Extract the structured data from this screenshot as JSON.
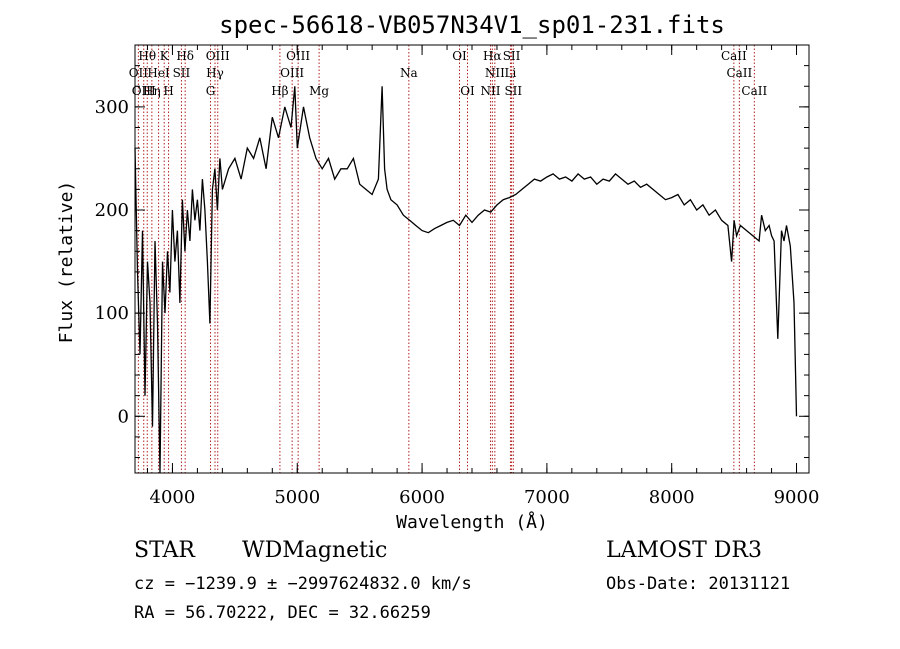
{
  "chart_data": {
    "type": "line",
    "title": "spec-56618-VB057N34V1_sp01-231.fits",
    "xlabel": "Wavelength (Å)",
    "ylabel": "Flux (relative)",
    "xlim": [
      3700,
      9100
    ],
    "ylim": [
      -55,
      360
    ],
    "xticks": [
      4000,
      5000,
      6000,
      7000,
      8000,
      9000
    ],
    "yticks": [
      0,
      100,
      200,
      300
    ],
    "grid": false,
    "line_color": "#000000",
    "marker_color": "#b22222",
    "series": [
      {
        "x": [
          3700,
          3720,
          3740,
          3760,
          3780,
          3800,
          3820,
          3840,
          3860,
          3880,
          3900,
          3920,
          3940,
          3960,
          3980,
          4000,
          4020,
          4040,
          4060,
          4080,
          4100,
          4120,
          4140,
          4160,
          4180,
          4200,
          4220,
          4240,
          4260,
          4280,
          4300,
          4320,
          4340,
          4360,
          4380,
          4400,
          4450,
          4500,
          4550,
          4600,
          4650,
          4700,
          4750,
          4800,
          4850,
          4900,
          4950,
          4980,
          5000,
          5050,
          5100,
          5150,
          5200,
          5250,
          5300,
          5350,
          5400,
          5450,
          5500,
          5550,
          5600,
          5650,
          5680,
          5700,
          5720,
          5750,
          5800,
          5850,
          5900,
          5950,
          6000,
          6050,
          6100,
          6150,
          6200,
          6250,
          6300,
          6350,
          6400,
          6450,
          6500,
          6550,
          6600,
          6650,
          6700,
          6750,
          6800,
          6850,
          6900,
          6950,
          7000,
          7050,
          7100,
          7150,
          7200,
          7250,
          7300,
          7350,
          7400,
          7450,
          7500,
          7550,
          7600,
          7650,
          7700,
          7750,
          7800,
          7850,
          7900,
          7950,
          8000,
          8050,
          8100,
          8150,
          8200,
          8250,
          8300,
          8350,
          8400,
          8450,
          8480,
          8500,
          8520,
          8550,
          8600,
          8650,
          8700,
          8720,
          8750,
          8780,
          8800,
          8820,
          8850,
          8880,
          8900,
          8920,
          8950,
          8980,
          9000
        ],
        "values": [
          260,
          140,
          60,
          180,
          20,
          150,
          110,
          -10,
          170,
          90,
          -55,
          150,
          100,
          160,
          120,
          200,
          150,
          180,
          110,
          210,
          160,
          200,
          170,
          220,
          190,
          210,
          180,
          230,
          200,
          150,
          90,
          220,
          240,
          200,
          250,
          220,
          240,
          250,
          230,
          260,
          250,
          270,
          240,
          290,
          270,
          300,
          280,
          320,
          260,
          300,
          270,
          250,
          240,
          250,
          230,
          240,
          240,
          250,
          225,
          220,
          215,
          230,
          320,
          240,
          220,
          210,
          205,
          195,
          190,
          185,
          180,
          178,
          182,
          185,
          188,
          190,
          185,
          195,
          188,
          195,
          200,
          198,
          205,
          210,
          212,
          215,
          220,
          225,
          230,
          228,
          232,
          235,
          230,
          232,
          228,
          235,
          230,
          232,
          225,
          230,
          228,
          235,
          230,
          225,
          228,
          222,
          225,
          220,
          215,
          210,
          212,
          215,
          205,
          210,
          200,
          205,
          195,
          200,
          190,
          185,
          150,
          190,
          175,
          185,
          180,
          175,
          170,
          195,
          180,
          185,
          175,
          170,
          75,
          180,
          170,
          185,
          165,
          110,
          0
        ]
      }
    ],
    "spectral_lines": [
      {
        "name": "Hθ",
        "wavelength": 3798,
        "row": 0
      },
      {
        "name": "OII",
        "wavelength": 3727,
        "row": 1
      },
      {
        "name": "OIII",
        "wavelength": 3770,
        "row": 2
      },
      {
        "name": "Hη",
        "wavelength": 3835,
        "row": 2
      },
      {
        "name": "HeI",
        "wavelength": 3889,
        "row": 1
      },
      {
        "name": "K",
        "wavelength": 3934,
        "row": 0
      },
      {
        "name": "H",
        "wavelength": 3969,
        "row": 2
      },
      {
        "name": "SII",
        "wavelength": 4072,
        "row": 1
      },
      {
        "name": "Hδ",
        "wavelength": 4102,
        "row": 0
      },
      {
        "name": "G",
        "wavelength": 4305,
        "row": 2
      },
      {
        "name": "Hγ",
        "wavelength": 4341,
        "row": 1
      },
      {
        "name": "OIII",
        "wavelength": 4363,
        "row": 0
      },
      {
        "name": "Hβ",
        "wavelength": 4861,
        "row": 2
      },
      {
        "name": "OIII",
        "wavelength": 4959,
        "row": 1
      },
      {
        "name": "OIII",
        "wavelength": 5007,
        "row": 0
      },
      {
        "name": "Mg",
        "wavelength": 5175,
        "row": 2
      },
      {
        "name": "Na",
        "wavelength": 5894,
        "row": 1
      },
      {
        "name": "OI",
        "wavelength": 6300,
        "row": 0
      },
      {
        "name": "OI",
        "wavelength": 6364,
        "row": 2
      },
      {
        "name": "NII",
        "wavelength": 6548,
        "row": 2
      },
      {
        "name": "Hα",
        "wavelength": 6563,
        "row": 0
      },
      {
        "name": "NII",
        "wavelength": 6583,
        "row": 1
      },
      {
        "name": "Li",
        "wavelength": 6708,
        "row": 1
      },
      {
        "name": "SII",
        "wavelength": 6717,
        "row": 0
      },
      {
        "name": "SII",
        "wavelength": 6731,
        "row": 2
      },
      {
        "name": "CaII",
        "wavelength": 8498,
        "row": 0
      },
      {
        "name": "CaII",
        "wavelength": 8542,
        "row": 1
      },
      {
        "name": "CaII",
        "wavelength": 8662,
        "row": 2
      }
    ]
  },
  "info": {
    "class": "STAR",
    "subclass": "WDMagnetic",
    "survey": "LAMOST DR3",
    "cz": "cz = −1239.9 ± −2997624832.0 km/s",
    "obs_date": "Obs-Date: 20131121",
    "radec": "RA =  56.70222, DEC =  32.66259"
  }
}
